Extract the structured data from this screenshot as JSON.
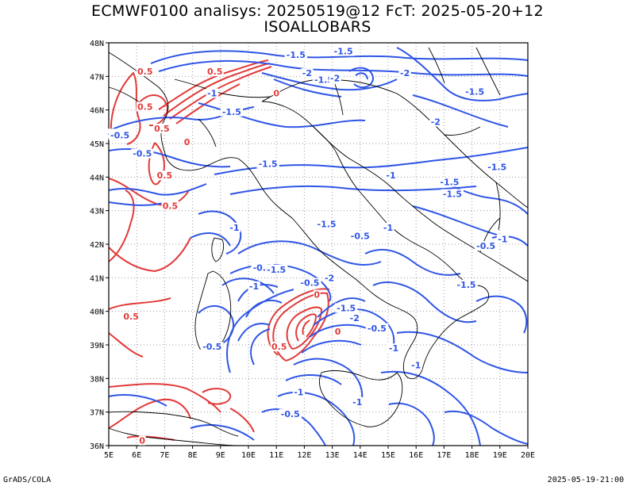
{
  "title_line1": "ECMWF0100 analisys: 20250519@12 FcT: 2025-05-20+12",
  "title_line2": "ISOALLOBARS",
  "footer_left": "GrADS/COLA",
  "footer_right": "2025-05-19-21:00",
  "axes": {
    "lon_range": [
      5,
      20
    ],
    "lat_range": [
      36,
      48
    ],
    "lon_ticks": [
      "5E",
      "6E",
      "7E",
      "8E",
      "9E",
      "10E",
      "11E",
      "12E",
      "13E",
      "14E",
      "15E",
      "16E",
      "17E",
      "18E",
      "19E",
      "20E"
    ],
    "lat_ticks": [
      "36N",
      "37N",
      "38N",
      "39N",
      "40N",
      "41N",
      "42N",
      "43N",
      "44N",
      "45N",
      "46N",
      "47N",
      "48N"
    ],
    "grid": "dotted"
  },
  "colors": {
    "negative_contour": "#2f55e6",
    "positive_contour": "#e23a3a",
    "coastline": "#000000",
    "grid": "#9a9a9a"
  },
  "contour_labels": [
    {
      "text": "-1.5",
      "lon": 11.7,
      "lat": 47.65,
      "sign": "neg"
    },
    {
      "text": "-1.5",
      "lon": 13.4,
      "lat": 47.75,
      "sign": "neg"
    },
    {
      "text": "-2",
      "lon": 12.1,
      "lat": 47.1,
      "sign": "neg"
    },
    {
      "text": "-1.5",
      "lon": 12.7,
      "lat": 46.9,
      "sign": "neg"
    },
    {
      "text": "-2",
      "lon": 13.1,
      "lat": 46.95,
      "sign": "neg"
    },
    {
      "text": "-2",
      "lon": 15.6,
      "lat": 47.1,
      "sign": "neg"
    },
    {
      "text": "-1.5",
      "lon": 18.1,
      "lat": 46.55,
      "sign": "neg"
    },
    {
      "text": "-1.5",
      "lon": 9.4,
      "lat": 45.95,
      "sign": "neg"
    },
    {
      "text": "-1",
      "lon": 8.7,
      "lat": 46.5,
      "sign": "neg"
    },
    {
      "text": "-2",
      "lon": 16.7,
      "lat": 45.65,
      "sign": "neg"
    },
    {
      "text": "-0.5",
      "lon": 5.3,
      "lat": 45.3,
      "sign": "neg"
    },
    {
      "text": "-0.5",
      "lon": 6.2,
      "lat": 44.7,
      "sign": "neg"
    },
    {
      "text": "-1.5",
      "lon": 10.7,
      "lat": 44.4,
      "sign": "neg"
    },
    {
      "text": "-1.5",
      "lon": 18.9,
      "lat": 44.3,
      "sign": "neg"
    },
    {
      "text": "-1",
      "lon": 15.1,
      "lat": 44.05,
      "sign": "neg"
    },
    {
      "text": "-1.5",
      "lon": 17.2,
      "lat": 43.85,
      "sign": "neg"
    },
    {
      "text": "-1.5",
      "lon": 17.3,
      "lat": 43.5,
      "sign": "neg"
    },
    {
      "text": "-1",
      "lon": 9.5,
      "lat": 42.5,
      "sign": "neg"
    },
    {
      "text": "-1.5",
      "lon": 12.8,
      "lat": 42.6,
      "sign": "neg"
    },
    {
      "text": "-1",
      "lon": 15.0,
      "lat": 42.5,
      "sign": "neg"
    },
    {
      "text": "-0.5",
      "lon": 14.0,
      "lat": 42.25,
      "sign": "neg"
    },
    {
      "text": "-1",
      "lon": 19.1,
      "lat": 42.15,
      "sign": "neg"
    },
    {
      "text": "-0.5",
      "lon": 18.5,
      "lat": 41.95,
      "sign": "neg"
    },
    {
      "text": "-0.5",
      "lon": 10.5,
      "lat": 41.3,
      "sign": "neg"
    },
    {
      "text": "-1.5",
      "lon": 11.0,
      "lat": 41.25,
      "sign": "neg"
    },
    {
      "text": "-1",
      "lon": 10.2,
      "lat": 40.75,
      "sign": "neg"
    },
    {
      "text": "-0.5",
      "lon": 12.2,
      "lat": 40.85,
      "sign": "neg"
    },
    {
      "text": "-2",
      "lon": 12.9,
      "lat": 41.0,
      "sign": "neg"
    },
    {
      "text": "-1.5",
      "lon": 17.8,
      "lat": 40.8,
      "sign": "neg"
    },
    {
      "text": "-1.5",
      "lon": 13.5,
      "lat": 40.1,
      "sign": "neg"
    },
    {
      "text": "-2",
      "lon": 13.8,
      "lat": 39.8,
      "sign": "neg"
    },
    {
      "text": "-0.5",
      "lon": 14.6,
      "lat": 39.5,
      "sign": "neg"
    },
    {
      "text": "-0.5",
      "lon": 8.7,
      "lat": 38.95,
      "sign": "neg"
    },
    {
      "text": "-1",
      "lon": 15.2,
      "lat": 38.9,
      "sign": "neg"
    },
    {
      "text": "-1",
      "lon": 16.0,
      "lat": 38.4,
      "sign": "neg"
    },
    {
      "text": "-1",
      "lon": 11.8,
      "lat": 37.6,
      "sign": "neg"
    },
    {
      "text": "-1",
      "lon": 13.9,
      "lat": 37.3,
      "sign": "neg"
    },
    {
      "text": "-0.5",
      "lon": 11.5,
      "lat": 36.95,
      "sign": "neg"
    },
    {
      "text": "-0.5",
      "lon": 5.4,
      "lat": 45.25,
      "sign": "neg"
    },
    {
      "text": "0.5",
      "lon": 8.8,
      "lat": 47.15,
      "sign": "pos"
    },
    {
      "text": "0.5",
      "lon": 6.3,
      "lat": 47.15,
      "sign": "pos"
    },
    {
      "text": "0.5",
      "lon": 6.3,
      "lat": 46.1,
      "sign": "pos"
    },
    {
      "text": "0.5",
      "lon": 6.9,
      "lat": 45.45,
      "sign": "pos"
    },
    {
      "text": "0.5",
      "lon": 7.0,
      "lat": 44.05,
      "sign": "pos"
    },
    {
      "text": "0.5",
      "lon": 7.2,
      "lat": 43.15,
      "sign": "pos"
    },
    {
      "text": "0.5",
      "lon": 5.8,
      "lat": 39.85,
      "sign": "pos"
    },
    {
      "text": "0.5",
      "lon": 11.1,
      "lat": 38.95,
      "sign": "pos"
    },
    {
      "text": "0",
      "lon": 11.0,
      "lat": 46.5,
      "sign": "pos"
    },
    {
      "text": "0",
      "lon": 12.45,
      "lat": 40.5,
      "sign": "pos"
    },
    {
      "text": "0",
      "lon": 13.2,
      "lat": 39.4,
      "sign": "pos"
    },
    {
      "text": "0",
      "lon": 7.8,
      "lat": 45.05,
      "sign": "pos"
    },
    {
      "text": "0",
      "lon": 6.2,
      "lat": 36.15,
      "sign": "pos"
    }
  ]
}
